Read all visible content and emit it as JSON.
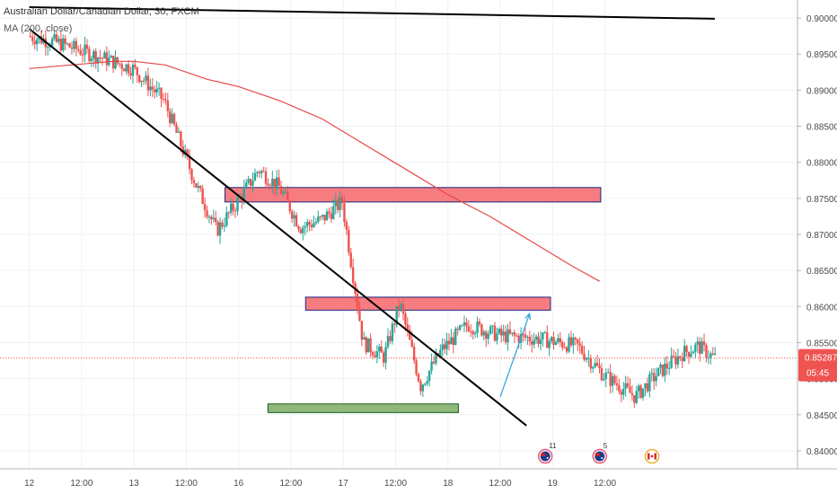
{
  "window": {
    "symbol_title": "Australian Dollar/Canadian Dollar, 30, FXCM",
    "indicator_label": "MA (200, close)"
  },
  "colors": {
    "up_candle": "#26a69a",
    "down_candle": "#ef5350",
    "ma_line": "#e84848",
    "trendline": "#000000",
    "resistance_zone_fill": "#f77c80",
    "resistance_zone_border": "#1a237e",
    "support_zone_fill": "#8fb87a",
    "support_zone_border": "#1b5e20",
    "projection_arrow": "#29a3e0",
    "price_tag": "#ef5350",
    "grid": "#eef1f5",
    "axis_text": "#4a4a4a"
  },
  "chart_data": {
    "type": "candlestick",
    "title": "Australian Dollar/Canadian Dollar, 30, FXCM",
    "indicator": "MA (200, close)",
    "y_ticks": [
      "0.90000",
      "0.89500",
      "0.89000",
      "0.88500",
      "0.88000",
      "0.87500",
      "0.87000",
      "0.86500",
      "0.86000",
      "0.85500",
      "0.85000",
      "0.84500",
      "0.84000"
    ],
    "ylim": [
      0.8375,
      0.9025
    ],
    "x_ticks": [
      "12",
      "12:00",
      "13",
      "12:00",
      "16",
      "12:00",
      "17",
      "12:00",
      "18",
      "12:00",
      "19",
      "12:00"
    ],
    "last_price": "0.85287",
    "countdown": "05:45",
    "price_anchors": [
      {
        "t": 0.0,
        "p": 0.8975
      },
      {
        "t": 0.3,
        "p": 0.8965
      },
      {
        "t": 0.7,
        "p": 0.8945
      },
      {
        "t": 1.0,
        "p": 0.893
      },
      {
        "t": 1.3,
        "p": 0.8885
      },
      {
        "t": 1.6,
        "p": 0.877
      },
      {
        "t": 1.8,
        "p": 0.8705
      },
      {
        "t": 2.0,
        "p": 0.8745
      },
      {
        "t": 2.2,
        "p": 0.879
      },
      {
        "t": 2.4,
        "p": 0.8765
      },
      {
        "t": 2.6,
        "p": 0.871
      },
      {
        "t": 2.8,
        "p": 0.872
      },
      {
        "t": 3.0,
        "p": 0.8745
      },
      {
        "t": 3.2,
        "p": 0.855
      },
      {
        "t": 3.4,
        "p": 0.853
      },
      {
        "t": 3.55,
        "p": 0.8605
      },
      {
        "t": 3.75,
        "p": 0.849
      },
      {
        "t": 3.95,
        "p": 0.854
      },
      {
        "t": 4.2,
        "p": 0.8575
      },
      {
        "t": 4.5,
        "p": 0.856
      },
      {
        "t": 4.9,
        "p": 0.8555
      },
      {
        "t": 5.25,
        "p": 0.8545
      },
      {
        "t": 5.5,
        "p": 0.8505
      },
      {
        "t": 5.8,
        "p": 0.8475
      },
      {
        "t": 6.0,
        "p": 0.8505
      },
      {
        "t": 6.25,
        "p": 0.8535
      },
      {
        "t": 6.4,
        "p": 0.8545
      },
      {
        "t": 6.55,
        "p": 0.8529
      }
    ],
    "ma_200": [
      {
        "t": 0.0,
        "p": 0.893
      },
      {
        "t": 0.4,
        "p": 0.8935
      },
      {
        "t": 0.8,
        "p": 0.894
      },
      {
        "t": 1.0,
        "p": 0.894
      },
      {
        "t": 1.3,
        "p": 0.8935
      },
      {
        "t": 1.7,
        "p": 0.8915
      },
      {
        "t": 2.0,
        "p": 0.8905
      },
      {
        "t": 2.4,
        "p": 0.8885
      },
      {
        "t": 2.8,
        "p": 0.886
      },
      {
        "t": 3.2,
        "p": 0.8825
      },
      {
        "t": 3.6,
        "p": 0.879
      },
      {
        "t": 4.0,
        "p": 0.8755
      },
      {
        "t": 4.4,
        "p": 0.8725
      },
      {
        "t": 4.8,
        "p": 0.869
      },
      {
        "t": 5.2,
        "p": 0.8655
      },
      {
        "t": 5.45,
        "p": 0.8635
      }
    ],
    "drawings": {
      "trendlines": [
        {
          "t1": 0.0,
          "p1": 0.9015,
          "t2": 6.55,
          "p2": 0.8999
        },
        {
          "t1": 0.0,
          "p1": 0.8985,
          "t2": 4.75,
          "p2": 0.8435
        }
      ],
      "resistance_zones": [
        {
          "t1": 1.87,
          "t2": 5.46,
          "p_low": 0.8745,
          "p_high": 0.8765
        },
        {
          "t1": 2.64,
          "t2": 4.98,
          "p_low": 0.8595,
          "p_high": 0.8613
        }
      ],
      "support_zones": [
        {
          "t1": 2.28,
          "t2": 4.1,
          "p_low": 0.8453,
          "p_high": 0.8465
        }
      ],
      "projection_arrow": {
        "t1": 4.5,
        "p1": 0.8475,
        "t2": 4.78,
        "p2": 0.859
      }
    },
    "events": [
      {
        "label": "11",
        "icon": "AU",
        "t": 4.93
      },
      {
        "label": "5",
        "icon": "AU",
        "t": 5.45
      },
      {
        "label": "",
        "icon": "CA",
        "t": 5.95
      }
    ]
  }
}
